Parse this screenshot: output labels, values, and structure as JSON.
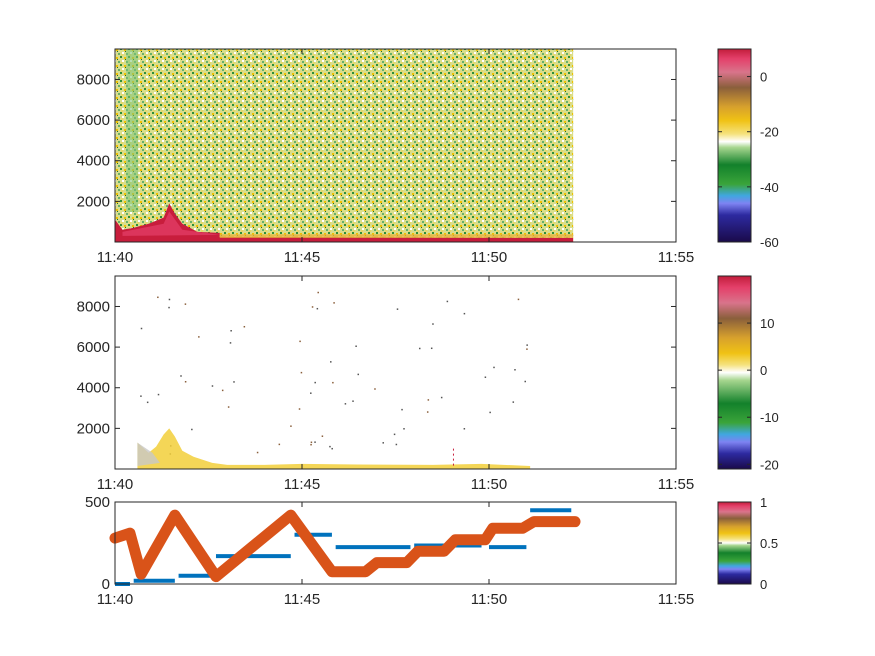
{
  "chart_data": [
    {
      "type": "heatmap",
      "title": "",
      "xlabel": "",
      "ylabel": "",
      "x_ticks": [
        "11:40",
        "11:45",
        "11:50",
        "11:55"
      ],
      "x_tick_values_min": [
        0,
        5,
        10,
        15
      ],
      "xlim_min": [
        0,
        15
      ],
      "data_xlim_min": [
        0,
        12.25
      ],
      "y_ticks": [
        2000,
        4000,
        6000,
        8000
      ],
      "ylim": [
        0,
        9500
      ],
      "grid": false,
      "colorbar": {
        "ticks": [
          0,
          -20,
          -40,
          -60
        ],
        "range": [
          -60,
          10
        ]
      },
      "features": [
        {
          "x_start_min": 0,
          "x_end_min": 2.8,
          "y_max": 1900,
          "level": 8
        },
        {
          "x_start_min": 2.8,
          "x_end_min": 12.25,
          "y_max": 300,
          "level": 7
        }
      ]
    },
    {
      "type": "heatmap",
      "title": "",
      "xlabel": "",
      "ylabel": "",
      "x_ticks": [
        "11:40",
        "11:45",
        "11:50",
        "11:55"
      ],
      "x_tick_values_min": [
        0,
        5,
        10,
        15
      ],
      "xlim_min": [
        0,
        15
      ],
      "data_xlim_min": [
        0.6,
        11.1
      ],
      "y_ticks": [
        2000,
        4000,
        6000,
        8000
      ],
      "ylim": [
        0,
        9500
      ],
      "grid": false,
      "colorbar": {
        "ticks": [
          10,
          0,
          -10,
          -20
        ],
        "range": [
          -21,
          20
        ]
      }
    },
    {
      "type": "line",
      "title": "",
      "xlabel": "",
      "ylabel": "",
      "x_ticks": [
        "11:40",
        "11:45",
        "11:50",
        "11:55"
      ],
      "x_tick_values_min": [
        0,
        5,
        10,
        15
      ],
      "xlim_min": [
        0,
        15
      ],
      "y_ticks": [
        0,
        500
      ],
      "ylim": [
        0,
        500
      ],
      "grid": false,
      "colorbar": {
        "ticks": [
          0,
          0.5,
          1
        ],
        "range": [
          0,
          1
        ]
      },
      "series": [
        {
          "color": "#0072BD",
          "segments": [
            {
              "x_min": [
                0,
                0.4
              ],
              "y": 0
            },
            {
              "x_min": [
                0.5,
                1.6
              ],
              "y": 20
            },
            {
              "x_min": [
                1.7,
                2.6
              ],
              "y": 50
            },
            {
              "x_min": [
                2.7,
                4.7
              ],
              "y": 170
            },
            {
              "x_min": [
                4.8,
                5.8
              ],
              "y": 300
            },
            {
              "x_min": [
                5.9,
                7.9
              ],
              "y": 225
            },
            {
              "x_min": [
                8.0,
                9.8
              ],
              "y": 235
            },
            {
              "x_min": [
                10.0,
                11.0
              ],
              "y": 225
            },
            {
              "x_min": [
                11.1,
                12.2
              ],
              "y": 450
            }
          ]
        },
        {
          "color": "#D95319",
          "x_min": [
            0.0,
            0.4,
            0.7,
            1.6,
            2.7,
            4.7,
            5.8,
            6.7,
            7.0,
            7.8,
            8.1,
            8.8,
            9.1,
            9.9,
            10.1,
            10.9,
            11.2,
            12.3
          ],
          "y": [
            280,
            310,
            60,
            420,
            45,
            420,
            75,
            75,
            130,
            130,
            200,
            200,
            270,
            270,
            340,
            340,
            380,
            380
          ]
        }
      ]
    }
  ]
}
